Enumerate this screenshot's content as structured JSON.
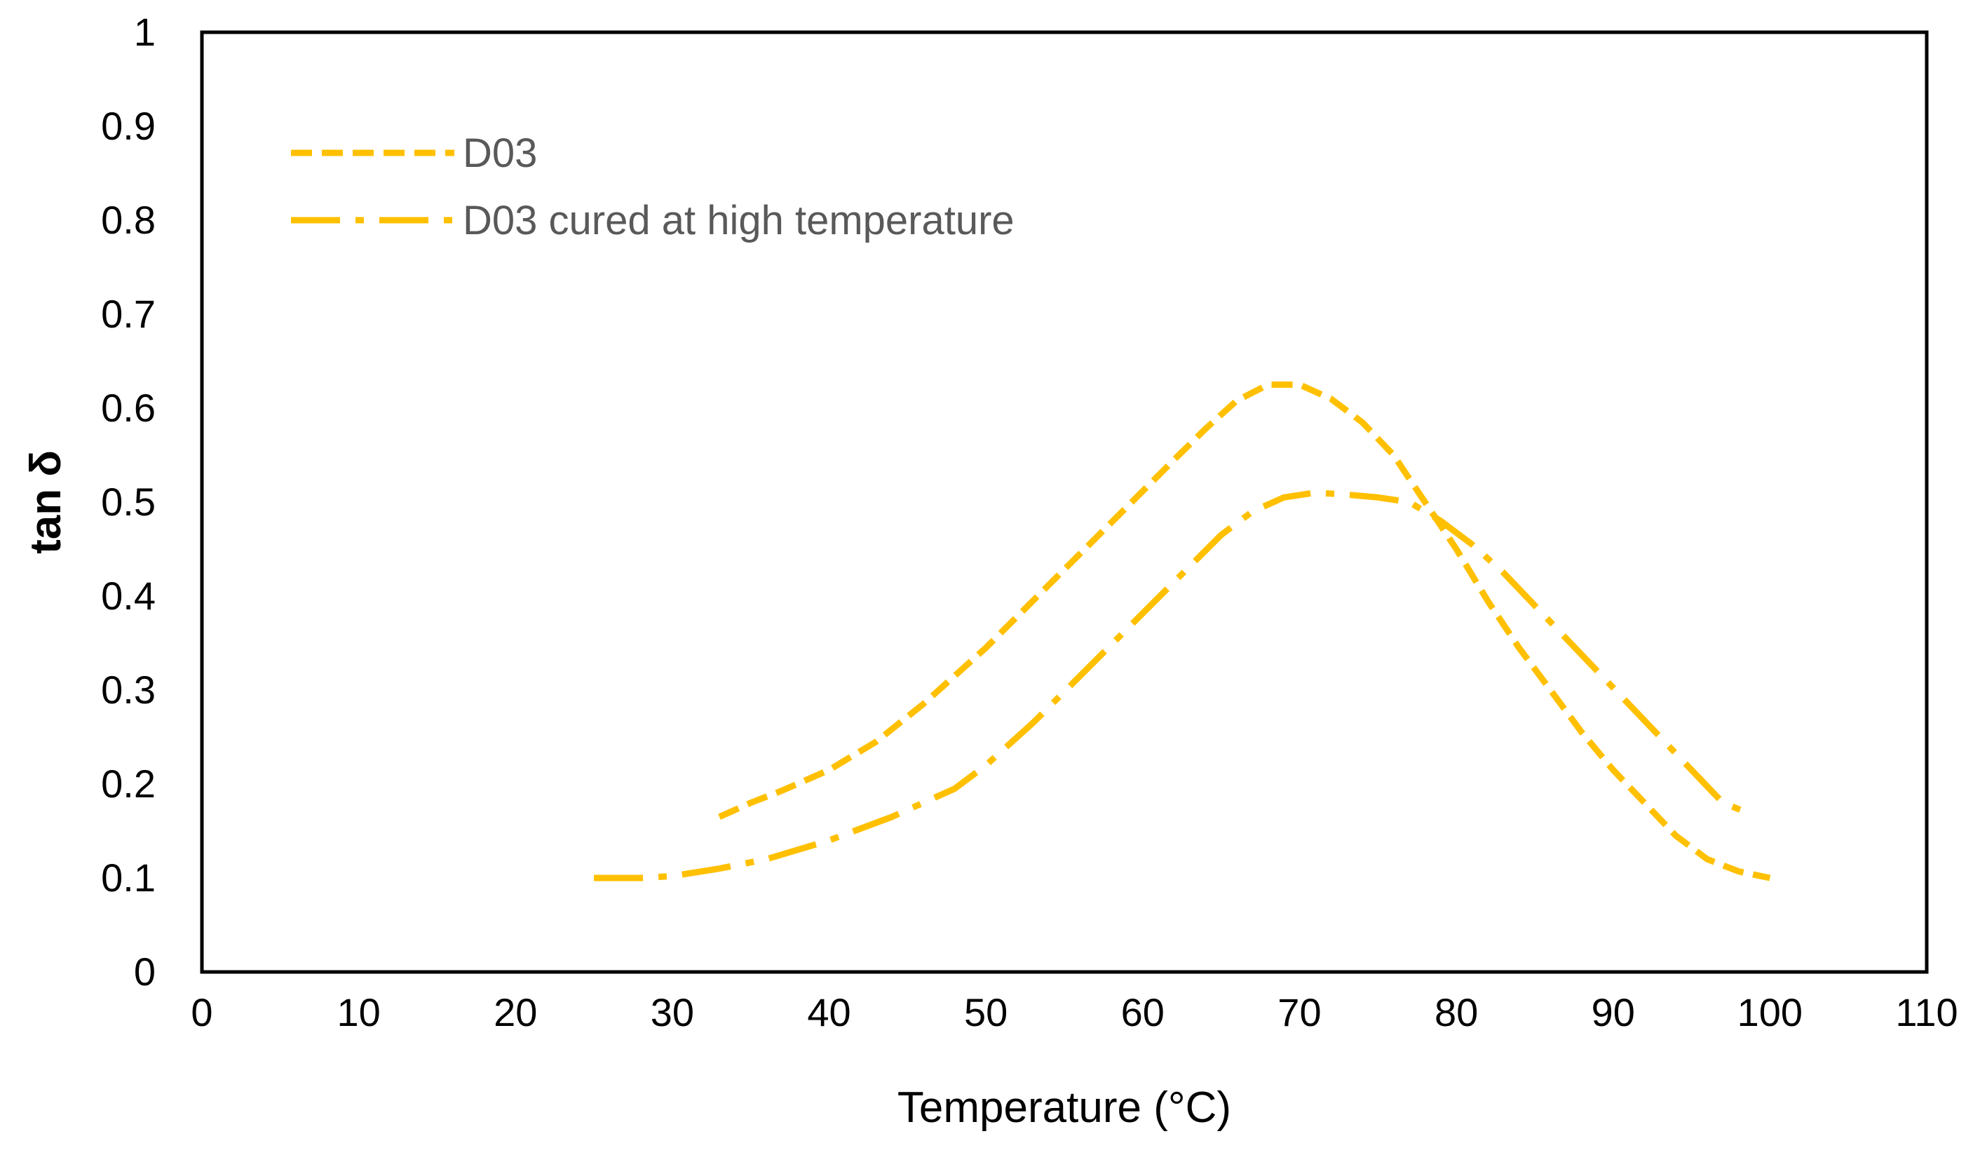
{
  "chart_data": {
    "type": "line",
    "title": "",
    "xlabel": "Temperature (°C)",
    "ylabel": "tan δ",
    "xlim": [
      0,
      110
    ],
    "ylim": [
      0,
      1
    ],
    "x_ticks": [
      0,
      10,
      20,
      30,
      40,
      50,
      60,
      70,
      80,
      90,
      100,
      110
    ],
    "y_ticks": [
      0,
      0.1,
      0.2,
      0.3,
      0.4,
      0.5,
      0.6,
      0.7,
      0.8,
      0.9,
      1
    ],
    "y_tick_labels": [
      "0",
      "0.1",
      "0.2",
      "0.3",
      "0.4",
      "0.5",
      "0.6",
      "0.7",
      "0.8",
      "0.9",
      "1"
    ],
    "grid": false,
    "legend": "top-left",
    "color": "#FFC000",
    "series": [
      {
        "name": "D03",
        "style": "dashed",
        "x": [
          33,
          35,
          37,
          40,
          43,
          46,
          50,
          53,
          56,
          59,
          62,
          64,
          66,
          68,
          70,
          72,
          74,
          76,
          78,
          80,
          82,
          84,
          86,
          88,
          90,
          92,
          94,
          96,
          98,
          100
        ],
        "y": [
          0.165,
          0.18,
          0.193,
          0.215,
          0.245,
          0.285,
          0.345,
          0.395,
          0.445,
          0.495,
          0.545,
          0.578,
          0.608,
          0.625,
          0.625,
          0.61,
          0.585,
          0.55,
          0.5,
          0.45,
          0.395,
          0.345,
          0.3,
          0.255,
          0.215,
          0.18,
          0.145,
          0.12,
          0.107,
          0.1
        ]
      },
      {
        "name": "D03 cured at high temperature",
        "style": "dash-dot",
        "x": [
          25,
          28,
          30,
          33,
          36,
          40,
          44,
          48,
          50,
          53,
          56,
          59,
          62,
          65,
          67,
          69,
          71,
          73,
          75,
          77,
          79,
          81,
          83,
          85,
          87,
          89,
          91,
          93,
          95,
          97,
          98.5
        ],
        "y": [
          0.1,
          0.1,
          0.102,
          0.11,
          0.12,
          0.14,
          0.165,
          0.195,
          0.22,
          0.265,
          0.315,
          0.365,
          0.415,
          0.465,
          0.49,
          0.505,
          0.51,
          0.508,
          0.505,
          0.5,
          0.48,
          0.455,
          0.425,
          0.39,
          0.355,
          0.32,
          0.285,
          0.25,
          0.215,
          0.18,
          0.17
        ]
      }
    ]
  }
}
